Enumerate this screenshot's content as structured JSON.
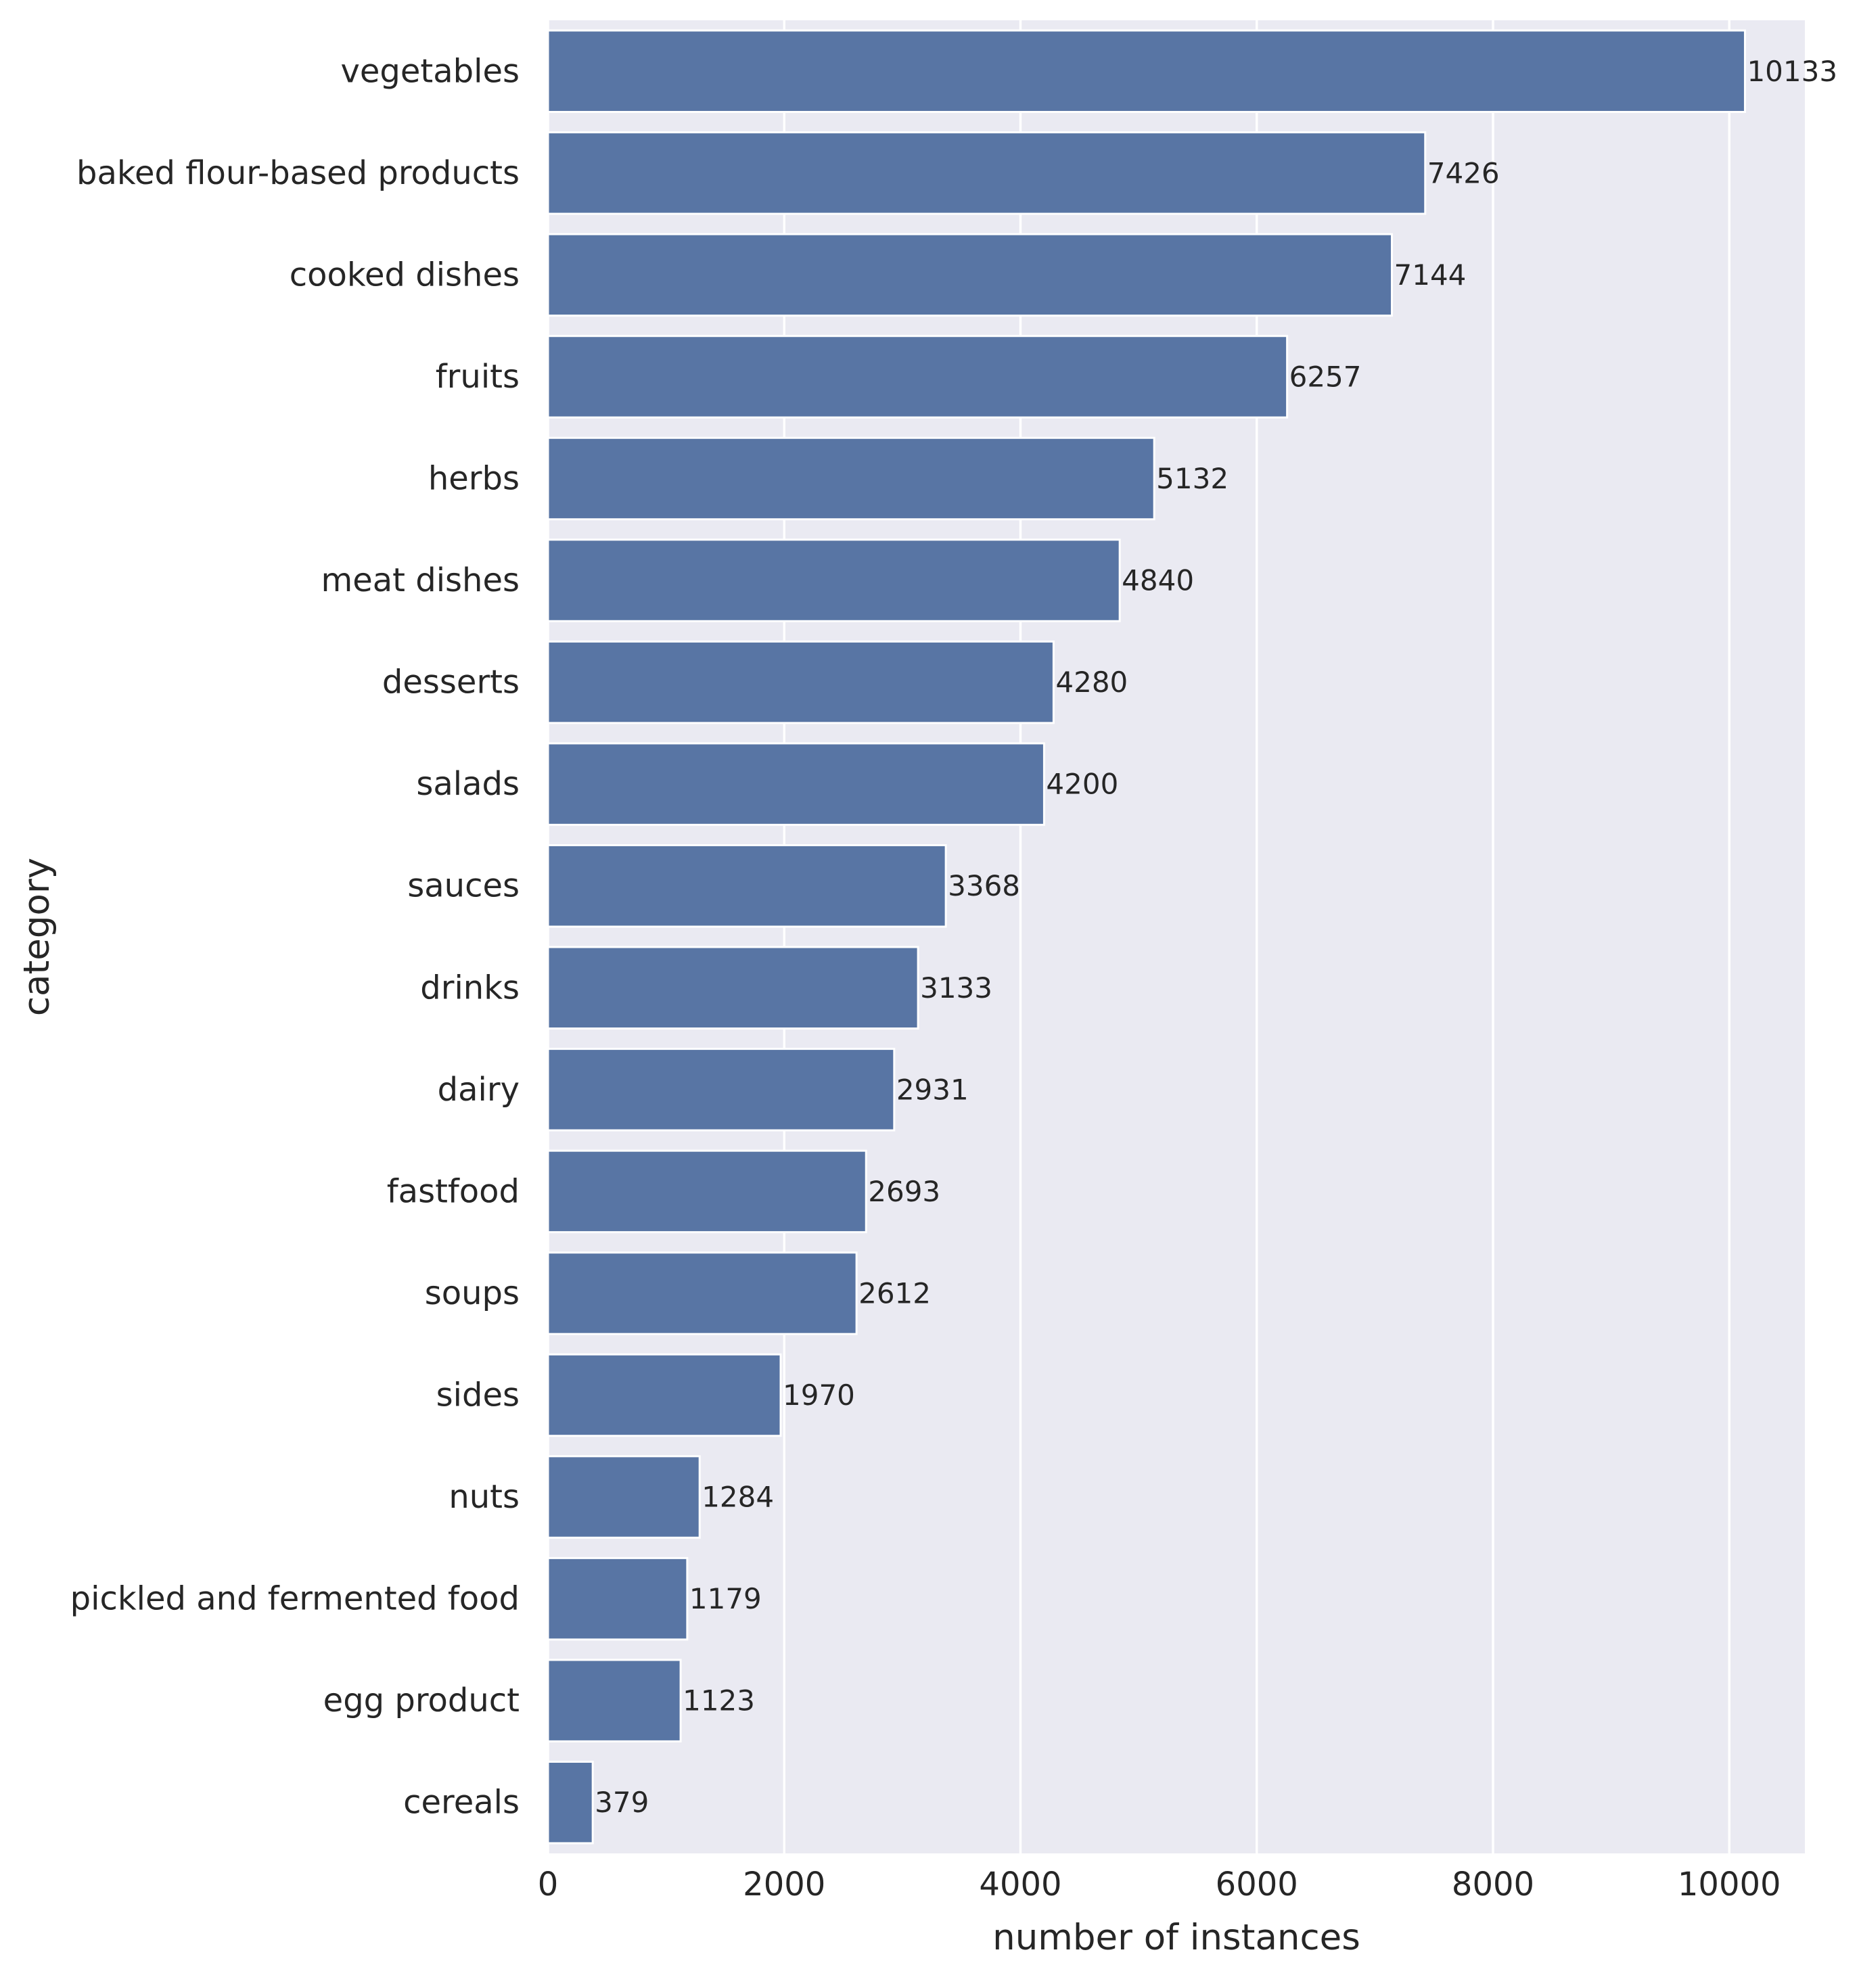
{
  "chart_data": {
    "type": "bar",
    "orientation": "horizontal",
    "title": "",
    "xlabel": "number of instances",
    "ylabel": "category",
    "xlim": [
      0,
      10640
    ],
    "xticks": [
      0,
      2000,
      4000,
      6000,
      8000,
      10000
    ],
    "xtick_labels": [
      "0",
      "2000",
      "4000",
      "6000",
      "8000",
      "10000"
    ],
    "grid": true,
    "categories": [
      "vegetables",
      "baked flour-based products",
      "cooked dishes",
      "fruits",
      "herbs",
      "meat dishes",
      "desserts",
      "salads",
      "sauces",
      "drinks",
      "dairy",
      "fastfood",
      "soups",
      "sides",
      "nuts",
      "pickled and fermented food",
      "egg product",
      "cereals"
    ],
    "values": [
      10133,
      7426,
      7144,
      6257,
      5132,
      4840,
      4280,
      4200,
      3368,
      3133,
      2931,
      2693,
      2612,
      1970,
      1284,
      1179,
      1123,
      379
    ],
    "value_labels": [
      "10133",
      "7426",
      "7144",
      "6257",
      "5132",
      "4840",
      "4280",
      "4200",
      "3368",
      "3133",
      "2931",
      "2693",
      "2612",
      "1970",
      "1284",
      "1179",
      "1123",
      "379"
    ],
    "colors": {
      "bar": "#5875a4",
      "background": "#eaeaf2",
      "grid": "#ffffff",
      "text": "#262626"
    }
  }
}
